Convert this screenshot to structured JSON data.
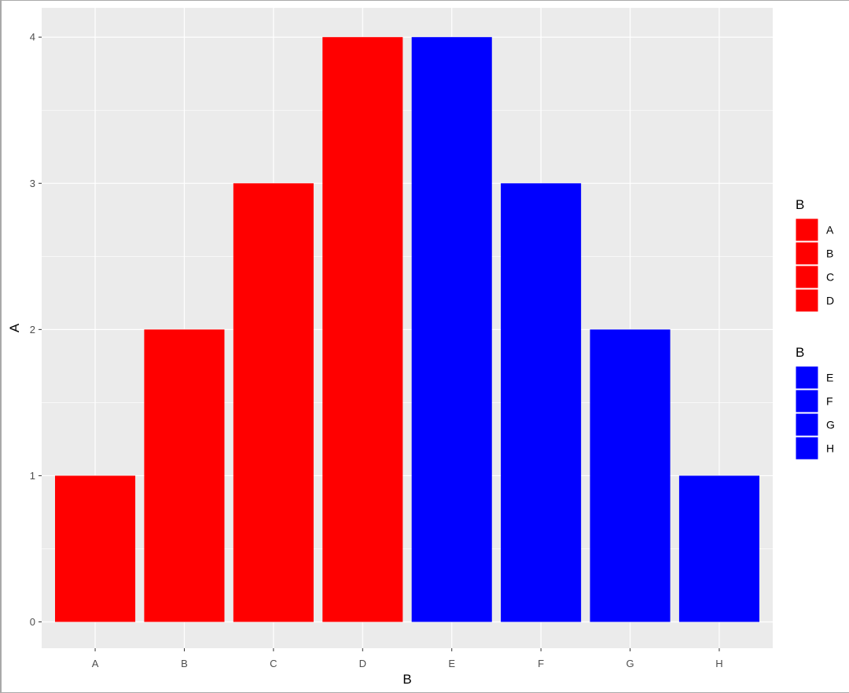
{
  "chart_data": {
    "type": "bar",
    "categories": [
      "A",
      "B",
      "C",
      "D",
      "E",
      "F",
      "G",
      "H"
    ],
    "values": [
      1,
      2,
      3,
      4,
      4,
      3,
      2,
      1
    ],
    "bar_colors": [
      "#ff0000",
      "#ff0000",
      "#ff0000",
      "#ff0000",
      "#0000ff",
      "#0000ff",
      "#0000ff",
      "#0000ff"
    ],
    "xlabel": "B",
    "ylabel": "A",
    "ylim": [
      -0.18,
      4.2
    ],
    "yticks": [
      0,
      1,
      2,
      3,
      4
    ],
    "grid": true,
    "panel_background": "#ebebeb",
    "legend_position": "right",
    "legends": [
      {
        "title": "B",
        "color": "#ff0000",
        "entries": [
          "A",
          "B",
          "C",
          "D"
        ]
      },
      {
        "title": "B",
        "color": "#0000ff",
        "entries": [
          "E",
          "F",
          "G",
          "H"
        ]
      }
    ]
  }
}
